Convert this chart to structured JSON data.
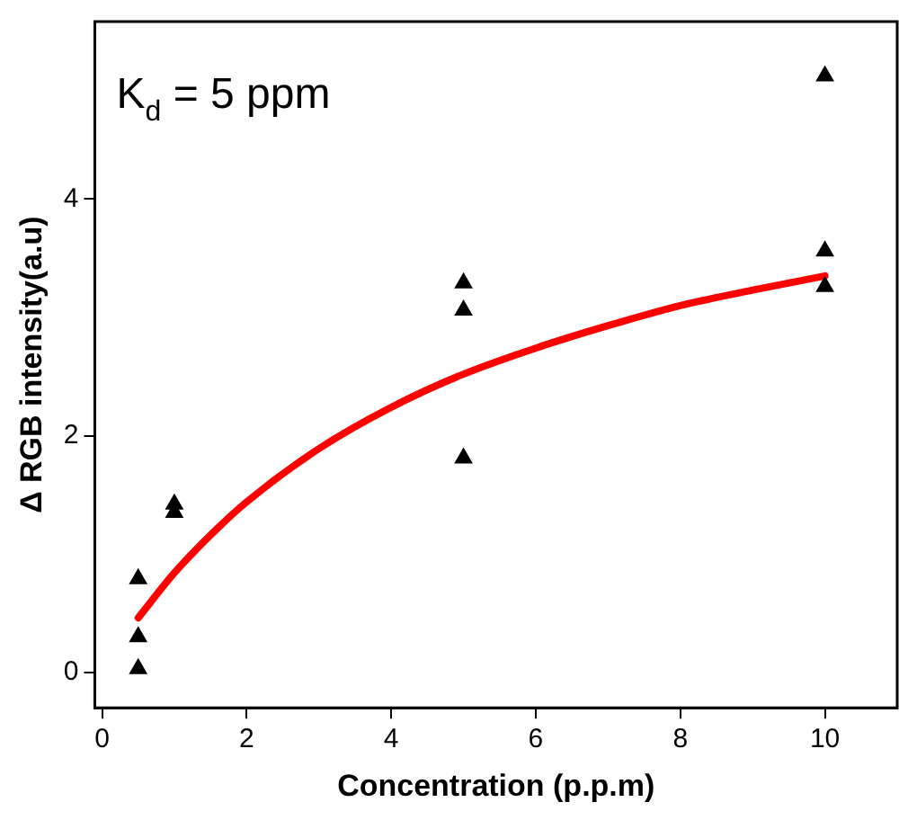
{
  "chart_data": {
    "type": "scatter",
    "xlabel": "Concentration (p.p.m)",
    "ylabel": "Δ RGB intensity(a.u)",
    "annotations": [
      "K$_{d}$ = 5 ppm"
    ],
    "series": [
      {
        "color": "#000000",
        "x": [
          0.5,
          0.5,
          0.5,
          1,
          1,
          5,
          5,
          5,
          10,
          10,
          10
        ],
        "values": [
          0.79,
          0.3,
          0.03,
          1.42,
          1.35,
          3.29,
          3.06,
          1.81,
          5.04,
          3.56,
          3.26
        ]
      },
      {
        "type": "line",
        "marker": "none",
        "color": "#ff0000",
        "x": [
          0.5,
          1,
          1.5,
          2,
          3,
          4,
          5,
          6,
          7,
          8,
          9,
          10
        ],
        "values": [
          0.46,
          0.84,
          1.16,
          1.44,
          1.89,
          2.24,
          2.52,
          2.74,
          2.93,
          3.1,
          3.23,
          3.35
        ]
      }
    ],
    "marker": "triangle",
    "grid": false,
    "legend": false,
    "xlim": [
      -0.1,
      11
    ],
    "xticks": [
      0,
      2,
      4,
      6,
      8,
      10
    ],
    "ylim": [
      -0.3,
      5.5
    ],
    "yticks": [
      0,
      2,
      4
    ]
  }
}
